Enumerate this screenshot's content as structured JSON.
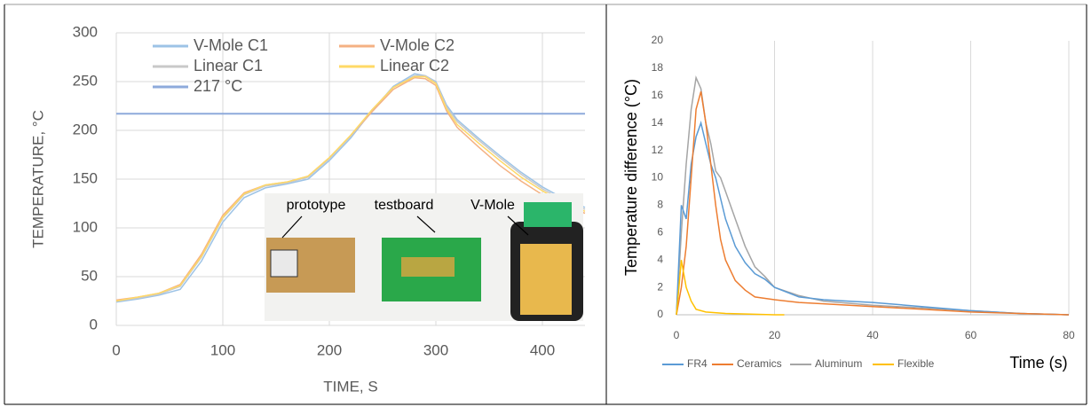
{
  "chart_data": [
    {
      "type": "line",
      "x_label": "TIME, S",
      "y_label": "TEMPERATURE, °C",
      "xlim": [
        0,
        440
      ],
      "xticks": [
        0,
        100,
        200,
        300,
        400
      ],
      "ylim": [
        0,
        300
      ],
      "yticks": [
        0,
        50,
        100,
        150,
        200,
        250,
        300
      ],
      "grid": true,
      "x": [
        0,
        20,
        40,
        60,
        80,
        100,
        120,
        140,
        160,
        180,
        200,
        220,
        240,
        260,
        280,
        290,
        300,
        310,
        320,
        340,
        360,
        380,
        400,
        420,
        440
      ],
      "series": [
        {
          "name": "V-Mole C1",
          "color": "#9dc3e6",
          "values": [
            24,
            27,
            31,
            37,
            66,
            106,
            131,
            141,
            145,
            150,
            169,
            192,
            220,
            245,
            258,
            256,
            250,
            226,
            211,
            192,
            174,
            157,
            142,
            130,
            121
          ]
        },
        {
          "name": "V-Mole C2",
          "color": "#f4b183",
          "values": [
            26,
            29,
            33,
            42,
            73,
            113,
            136,
            144,
            147,
            153,
            172,
            194,
            219,
            242,
            254,
            253,
            246,
            220,
            203,
            183,
            164,
            148,
            134,
            123,
            115
          ]
        },
        {
          "name": "Linear  C1",
          "color": "#c9c9c9",
          "values": [
            25,
            28,
            32,
            40,
            70,
            110,
            134,
            143,
            146,
            152,
            171,
            194,
            221,
            244,
            256,
            256,
            249,
            224,
            209,
            190,
            172,
            155,
            140,
            128,
            119
          ]
        },
        {
          "name": "Linear C2",
          "color": "#ffd966",
          "values": [
            25,
            29,
            33,
            41,
            71,
            111,
            135,
            144,
            147,
            153,
            172,
            195,
            221,
            244,
            255,
            255,
            248,
            222,
            206,
            187,
            169,
            152,
            138,
            126,
            117
          ]
        }
      ],
      "reference": {
        "name": "217 °C",
        "value": 217,
        "color": "#8eaadb"
      },
      "annotations": [
        "prototype",
        "testboard",
        "V-Mole"
      ]
    },
    {
      "type": "line",
      "x_label": "Time (s)",
      "y_label": "Temperature difference (°C)",
      "xlim": [
        0,
        80
      ],
      "xticks": [
        0,
        20,
        40,
        60,
        80
      ],
      "ylim": [
        0,
        20
      ],
      "yticks": [
        0,
        2,
        4,
        6,
        8,
        10,
        12,
        14,
        16,
        18,
        20
      ],
      "grid": true,
      "series": [
        {
          "name": "FR4",
          "color": "#5b9bd5",
          "x": [
            0,
            1,
            2,
            3,
            4,
            5,
            6,
            7,
            8,
            9,
            10,
            11,
            12,
            14,
            16,
            18,
            20,
            25,
            30,
            35,
            40,
            50,
            60,
            70,
            80
          ],
          "values": [
            0,
            8,
            7,
            11,
            13,
            14,
            12.5,
            11,
            10,
            8.5,
            7,
            6,
            5,
            3.8,
            3,
            2.6,
            2,
            1.3,
            1.1,
            1,
            0.9,
            0.6,
            0.3,
            0.1,
            0
          ]
        },
        {
          "name": "Ceramics",
          "color": "#ed7d31",
          "x": [
            0,
            1,
            2,
            3,
            4,
            5,
            6,
            7,
            8,
            9,
            10,
            12,
            14,
            16,
            20,
            25,
            30,
            40,
            50,
            60,
            70,
            80
          ],
          "values": [
            0,
            2,
            5,
            10,
            15,
            16.3,
            14,
            11,
            8,
            5.5,
            4,
            2.5,
            1.8,
            1.3,
            1.1,
            0.9,
            0.8,
            0.6,
            0.4,
            0.2,
            0.1,
            0
          ]
        },
        {
          "name": "Aluminum",
          "color": "#a5a5a5",
          "x": [
            0,
            1,
            2,
            3,
            4,
            5,
            6,
            7,
            8,
            9,
            10,
            11,
            12,
            14,
            16,
            18,
            20,
            25,
            30,
            40,
            50,
            60,
            70,
            80
          ],
          "values": [
            0,
            6,
            11,
            15,
            17.3,
            16.5,
            14,
            12.5,
            10.5,
            10,
            9,
            8,
            7,
            5,
            3.5,
            2.8,
            2,
            1.4,
            1,
            0.7,
            0.5,
            0.3,
            0.1,
            0
          ]
        },
        {
          "name": "Flexible",
          "color": "#ffc000",
          "x": [
            0,
            0.5,
            1,
            2,
            3,
            4,
            6,
            10,
            20,
            22
          ],
          "values": [
            0,
            2,
            4,
            2,
            1,
            0.4,
            0.2,
            0.1,
            0,
            0
          ]
        }
      ]
    }
  ]
}
